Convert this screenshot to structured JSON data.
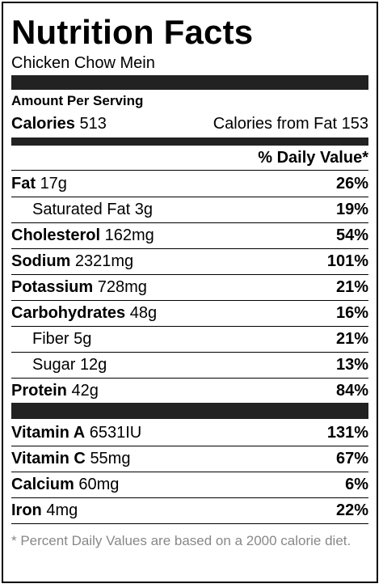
{
  "title": "Nutrition Facts",
  "subtitle": "Chicken Chow Mein",
  "amount_per_serving": "Amount Per Serving",
  "calories": {
    "label": "Calories",
    "value": "513",
    "from_fat_label": "Calories from Fat",
    "from_fat_value": "153"
  },
  "daily_value_header": "% Daily Value*",
  "nutrients": [
    {
      "name": "Fat",
      "amount": "17g",
      "pct": "26%",
      "indent": false
    },
    {
      "name": "Saturated Fat",
      "amount": "3g",
      "pct": "19%",
      "indent": true
    },
    {
      "name": "Cholesterol",
      "amount": "162mg",
      "pct": "54%",
      "indent": false
    },
    {
      "name": "Sodium",
      "amount": "2321mg",
      "pct": "101%",
      "indent": false
    },
    {
      "name": "Potassium",
      "amount": "728mg",
      "pct": "21%",
      "indent": false
    },
    {
      "name": "Carbohydrates",
      "amount": "48g",
      "pct": "16%",
      "indent": false
    },
    {
      "name": "Fiber",
      "amount": "5g",
      "pct": "21%",
      "indent": true
    },
    {
      "name": "Sugar",
      "amount": "12g",
      "pct": "13%",
      "indent": true
    },
    {
      "name": "Protein",
      "amount": "42g",
      "pct": "84%",
      "indent": false
    }
  ],
  "vitamins": [
    {
      "name": "Vitamin A",
      "amount": "6531IU",
      "pct": "131%"
    },
    {
      "name": "Vitamin C",
      "amount": "55mg",
      "pct": "67%"
    },
    {
      "name": "Calcium",
      "amount": "60mg",
      "pct": "6%"
    },
    {
      "name": "Iron",
      "amount": "4mg",
      "pct": "22%"
    }
  ],
  "footnote": "* Percent Daily Values are based on a 2000 calorie diet.",
  "colors": {
    "bar": "#222222",
    "footnote": "#888888"
  }
}
